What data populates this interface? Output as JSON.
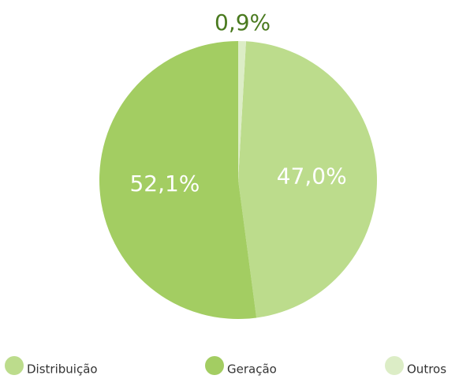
{
  "chart_data": {
    "type": "pie",
    "categories": [
      "Distribuição",
      "Geração",
      "Outros"
    ],
    "values": [
      47.0,
      52.1,
      0.9
    ],
    "value_labels": [
      "47,0%",
      "52,1%",
      "0,9%"
    ],
    "colors": [
      "#bcdc8c",
      "#a3cd62",
      "#dcedc6"
    ],
    "legend": "bottom"
  }
}
